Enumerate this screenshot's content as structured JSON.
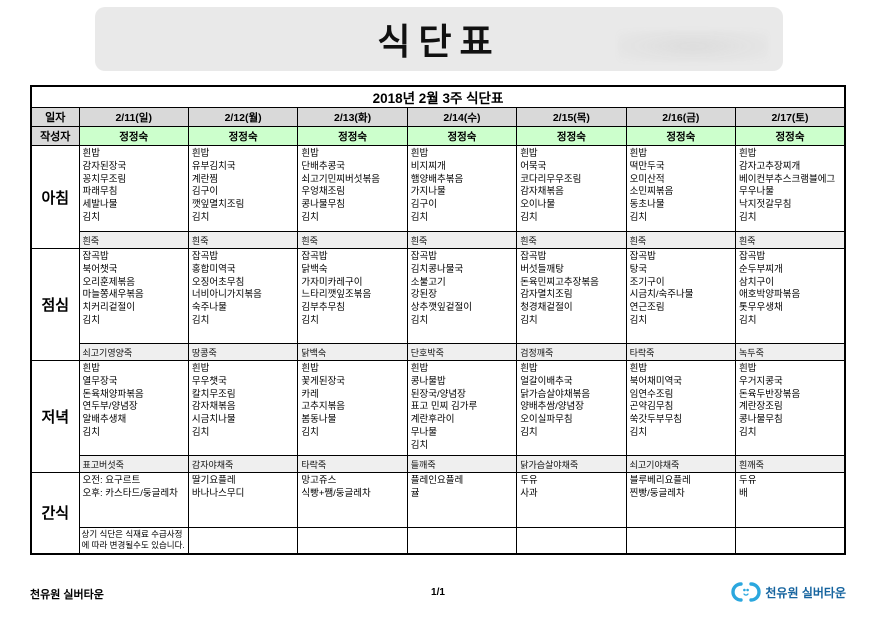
{
  "page_title": "식단표",
  "table": {
    "header_title": "2018년 2월 3주 식단표",
    "row_labels": {
      "date": "일자",
      "author": "작성자"
    },
    "dates": [
      "2/11(일)",
      "2/12(월)",
      "2/13(화)",
      "2/14(수)",
      "2/15(목)",
      "2/16(금)",
      "2/17(토)"
    ],
    "authors": [
      "정정숙",
      "정정숙",
      "정정숙",
      "정정숙",
      "정정숙",
      "정정숙",
      "정정숙"
    ],
    "meal_rows": [
      {
        "label": "아침",
        "menus": [
          [
            "흰밥",
            "감자된장국",
            "꽁치무조림",
            "파래무침",
            "세발나물",
            "김치"
          ],
          [
            "흰밥",
            "유부김치국",
            "계란찜",
            "김구이",
            "깻잎멸치조림",
            "김치"
          ],
          [
            "흰밥",
            "단배추콩국",
            "쇠고기민찌버섯볶음",
            "우엉채조림",
            "콩나물무침",
            "김치"
          ],
          [
            "흰밥",
            "비지찌개",
            "햄양배추볶음",
            "가지나물",
            "김구이",
            "김치"
          ],
          [
            "흰밥",
            "어묵국",
            "코다리무우조림",
            "감자채볶음",
            "오이나물",
            "김치"
          ],
          [
            "흰밥",
            "떡만두국",
            "오미산적",
            "소민찌볶음",
            "동초나물",
            "김치"
          ],
          [
            "흰밥",
            "감자고추장찌개",
            "베이컨부추스크램블에그",
            "무우나물",
            "낙지젓갈무침",
            "김치"
          ]
        ],
        "porridges": [
          "흰죽",
          "흰죽",
          "흰죽",
          "흰죽",
          "흰죽",
          "흰죽",
          "흰죽"
        ]
      },
      {
        "label": "점심",
        "menus": [
          [
            "잡곡밥",
            "북어챗국",
            "오리훈제볶음",
            "마늘쫑새우볶음",
            "치커리겉절이",
            "김치"
          ],
          [
            "잡곡밥",
            "홍합미역국",
            "오징어초무침",
            "너비아니가지볶음",
            "숙주나물",
            "김치"
          ],
          [
            "잡곡밥",
            "닭백숙",
            "가자미카레구이",
            "느타리깻잎조볶음",
            "김부추무침",
            "김치"
          ],
          [
            "잡곡밥",
            "김치콩나물국",
            "소불고기",
            "강된장",
            "상추깻잎겉절이",
            "김치"
          ],
          [
            "잡곡밥",
            "버섯들깨탕",
            "돈육민찌고추장볶음",
            "감자멸치조림",
            "청경채겉절이",
            "김치"
          ],
          [
            "잡곡밥",
            "탕국",
            "조기구이",
            "시금치/숙주나물",
            "연근조림",
            "김치"
          ],
          [
            "잡곡밥",
            "순두부찌개",
            "삼치구이",
            "애호박양파볶음",
            "톳무우생채",
            "김치"
          ]
        ],
        "porridges": [
          "쇠고기영양죽",
          "땅콩죽",
          "닭백숙",
          "단호박죽",
          "검정깨죽",
          "타락죽",
          "녹두죽"
        ]
      },
      {
        "label": "저녁",
        "menus": [
          [
            "흰밥",
            "열무장국",
            "돈육채양파볶음",
            "연두부/양념장",
            "알배추생채",
            "김치"
          ],
          [
            "흰밥",
            "무우챗국",
            "칼치무조림",
            "감자채볶음",
            "시금치나물",
            "김치"
          ],
          [
            "흰밥",
            "꽃게된장국",
            "카레",
            "고추지볶음",
            "봄동나물",
            "김치"
          ],
          [
            "흰밥",
            "콩나물밥",
            "된장국/양념장",
            "표고 민찌 김가루",
            "계란후라이",
            "무나물",
            "김치"
          ],
          [
            "흰밥",
            "얼갈이배추국",
            "닭가슴살야채볶음",
            "양배추쌈/양념장",
            "오이실파무침",
            "김치"
          ],
          [
            "흰밥",
            "북어채미역국",
            "임연수조림",
            "곤약김무침",
            "쑥갓두부무침",
            "김치"
          ],
          [
            "흰밥",
            "우거지콩국",
            "돈육두반장볶음",
            "계란장조림",
            "콩나물무침",
            "김치"
          ]
        ],
        "porridges": [
          "표고버섯죽",
          "감자야채죽",
          "타락죽",
          "들깨죽",
          "닭가슴살야채죽",
          "쇠고기야채죽",
          "흰깨죽"
        ]
      }
    ],
    "snack_row": {
      "label": "간식",
      "menus": [
        [
          "오전: 요구르트",
          "오후: 카스타드/둥글레차"
        ],
        [
          "딸기요플레",
          "바나나스무디"
        ],
        [
          "망고쥬스",
          "식빵+쨈/둥글레차"
        ],
        [
          "플레인요플레",
          "귤"
        ],
        [
          "두유",
          "사과"
        ],
        [
          "블루베리요플레",
          "찐빵/둥글레차"
        ],
        [
          "두유",
          "배"
        ]
      ],
      "note": "상기 식단은 식재료 수급사정에 따라 변경될수도 있습니다."
    }
  },
  "footer": {
    "site_name": "천유원 실버타운",
    "page_number": "1/1",
    "logo_text": "천유원 실버타운"
  },
  "colors": {
    "author_bg": "#ccffcc",
    "header_gray": "#d9d9d9",
    "title_box_bg": "#e9e9e9",
    "logo_blue": "#2ba7de",
    "logo_text_color": "#16649f"
  }
}
